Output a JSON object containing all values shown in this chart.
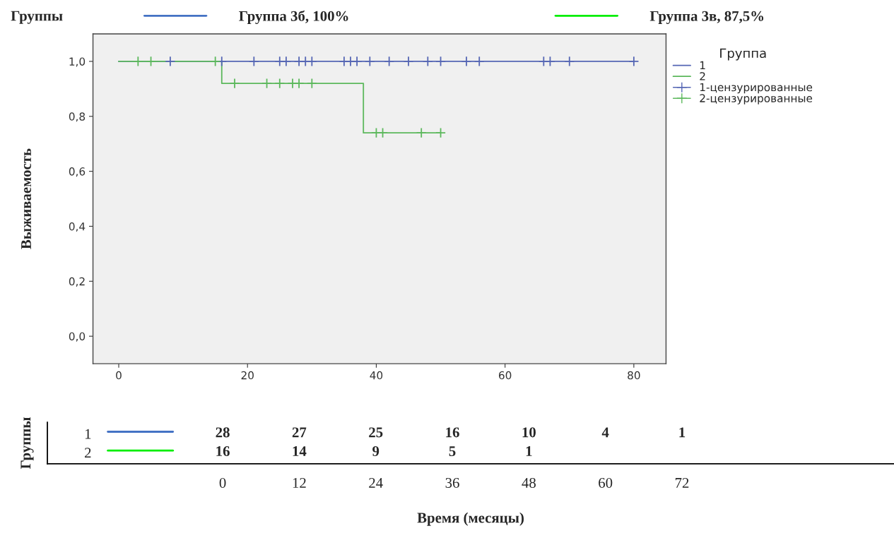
{
  "chart_data": [
    {
      "type": "step",
      "ylabel": "Выживаемость",
      "xlim": [
        -4,
        85
      ],
      "ylim": [
        -0.1,
        1.1
      ],
      "xticks": [
        0,
        20,
        40,
        60,
        80
      ],
      "yticks": [
        {
          "value": 0,
          "label": "0,0"
        },
        {
          "value": 0.2,
          "label": "0,2"
        },
        {
          "value": 0.4,
          "label": "0,4"
        },
        {
          "value": 0.6,
          "label": "0,6"
        },
        {
          "value": 0.8,
          "label": "0,8"
        },
        {
          "value": 1.0,
          "label": "1,0"
        }
      ],
      "legend": "right",
      "legend_title": "Группа",
      "series": [
        {
          "name": "1",
          "type": "step",
          "color": "#5566b4",
          "x": [
            0,
            80
          ],
          "values": [
            1.0,
            1.0
          ]
        },
        {
          "name": "2",
          "type": "step",
          "color": "#5cb85c",
          "x": [
            0,
            16,
            38,
            50
          ],
          "values": [
            1.0,
            0.92,
            0.74,
            0.74
          ]
        },
        {
          "name": "1-цензурированные",
          "type": "scatter",
          "marker": "cross",
          "color": "#5566b4",
          "x": [
            8,
            16,
            21,
            25,
            26,
            28,
            29,
            30,
            35,
            36,
            37,
            39,
            42,
            45,
            48,
            50,
            54,
            56,
            66,
            67,
            70,
            80
          ],
          "values": [
            1,
            1,
            1,
            1,
            1,
            1,
            1,
            1,
            1,
            1,
            1,
            1,
            1,
            1,
            1,
            1,
            1,
            1,
            1,
            1,
            1,
            1
          ]
        },
        {
          "name": "2-цензурированные",
          "type": "scatter",
          "marker": "cross",
          "color": "#5cb85c",
          "x": [
            3,
            5,
            15,
            18,
            23,
            25,
            27,
            28,
            30,
            40,
            41,
            47,
            50
          ],
          "values": [
            1,
            1,
            1,
            0.92,
            0.92,
            0.92,
            0.92,
            0.92,
            0.92,
            0.74,
            0.74,
            0.74,
            0.74
          ]
        }
      ]
    },
    {
      "type": "heatmap",
      "ylabel": "Группы",
      "xlabel": "Время (месяцы)",
      "legend_title": "Группы",
      "data_labels": true,
      "categories": [
        "0",
        "12",
        "24",
        "36",
        "48",
        "60",
        "72"
      ],
      "y_categories": [
        "1",
        "2"
      ],
      "annotations": [
        "Группа 3б, 100%",
        "Группа 3в, 87,5%"
      ],
      "colors": [
        "#4472c4",
        "#00ee00"
      ],
      "cells": [
        [
          28,
          27,
          25,
          16,
          10,
          4,
          1
        ],
        [
          16,
          14,
          9,
          5,
          1,
          null,
          null
        ]
      ]
    }
  ]
}
